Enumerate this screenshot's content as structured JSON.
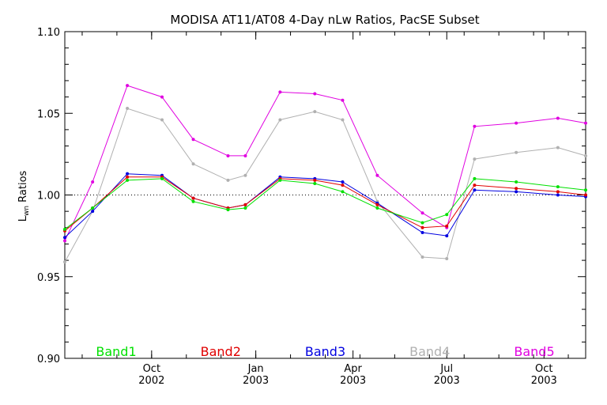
{
  "chart_data": {
    "type": "line",
    "title": "MODISA AT11/AT08 4-Day nLw Ratios, PacSE Subset",
    "ylabel_main": "L",
    "ylabel_sub": "wn",
    "ylabel_rest": " Ratios",
    "xlabel": "",
    "ylim": [
      0.9,
      1.1
    ],
    "xlim": [
      0,
      15
    ],
    "yticks": [
      0.9,
      0.95,
      1.0,
      1.05,
      1.1
    ],
    "ytick_labels": [
      "0.90",
      "0.95",
      "1.00",
      "1.05",
      "1.10"
    ],
    "xticks": [
      {
        "x": 2.5,
        "month": "Oct",
        "year": "2002"
      },
      {
        "x": 5.5,
        "month": "Jan",
        "year": "2003"
      },
      {
        "x": 8.3,
        "month": "Apr",
        "year": "2003"
      },
      {
        "x": 11.0,
        "month": "Jul",
        "year": "2003"
      },
      {
        "x": 13.8,
        "month": "Oct",
        "year": "2003"
      }
    ],
    "reference_line": 1.0,
    "grid": false,
    "legend_position": "bottom",
    "series": [
      {
        "name": "Band1",
        "color": "#00e000",
        "x": [
          0,
          0.8,
          1.8,
          2.8,
          3.7,
          4.7,
          5.2,
          6.2,
          7.2,
          8.0,
          9.0,
          10.3,
          11.0,
          11.8,
          13.0,
          14.2,
          15.0
        ],
        "y": [
          0.979,
          0.992,
          1.009,
          1.01,
          0.996,
          0.991,
          0.992,
          1.009,
          1.007,
          1.002,
          0.992,
          0.983,
          0.988,
          1.01,
          1.008,
          1.005,
          1.003
        ]
      },
      {
        "name": "Band2",
        "color": "#e00000",
        "x": [
          0,
          0.8,
          1.8,
          2.8,
          3.7,
          4.7,
          5.2,
          6.2,
          7.2,
          8.0,
          9.0,
          10.3,
          11.0,
          11.8,
          13.0,
          14.2,
          15.0
        ],
        "y": [
          0.978,
          0.992,
          1.011,
          1.011,
          0.998,
          0.992,
          0.994,
          1.01,
          1.009,
          1.006,
          0.994,
          0.98,
          0.981,
          1.006,
          1.004,
          1.002,
          1.0
        ]
      },
      {
        "name": "Band3",
        "color": "#0000e0",
        "x": [
          0,
          0.8,
          1.8,
          2.8,
          3.7,
          4.7,
          5.2,
          6.2,
          7.2,
          8.0,
          9.0,
          10.3,
          11.0,
          11.8,
          13.0,
          14.2,
          15.0
        ],
        "y": [
          0.974,
          0.99,
          1.013,
          1.012,
          0.998,
          0.992,
          0.994,
          1.011,
          1.01,
          1.008,
          0.995,
          0.977,
          0.975,
          1.003,
          1.002,
          1.0,
          0.999
        ]
      },
      {
        "name": "Band4",
        "color": "#b0b0b0",
        "x": [
          0,
          0.8,
          1.8,
          2.8,
          3.7,
          4.7,
          5.2,
          6.2,
          7.2,
          8.0,
          9.0,
          10.3,
          11.0,
          11.8,
          13.0,
          14.2,
          15.0
        ],
        "y": [
          0.959,
          0.99,
          1.053,
          1.046,
          1.019,
          1.009,
          1.012,
          1.046,
          1.051,
          1.046,
          0.996,
          0.962,
          0.961,
          1.022,
          1.026,
          1.029,
          1.024
        ]
      },
      {
        "name": "Band5",
        "color": "#e000e0",
        "x": [
          0,
          0.8,
          1.8,
          2.8,
          3.7,
          4.7,
          5.2,
          6.2,
          7.2,
          8.0,
          9.0,
          10.3,
          11.0,
          11.8,
          13.0,
          14.2,
          15.0
        ],
        "y": [
          0.972,
          1.008,
          1.067,
          1.06,
          1.034,
          1.024,
          1.024,
          1.063,
          1.062,
          1.058,
          1.012,
          0.989,
          0.98,
          1.042,
          1.044,
          1.047,
          1.044
        ]
      }
    ]
  }
}
